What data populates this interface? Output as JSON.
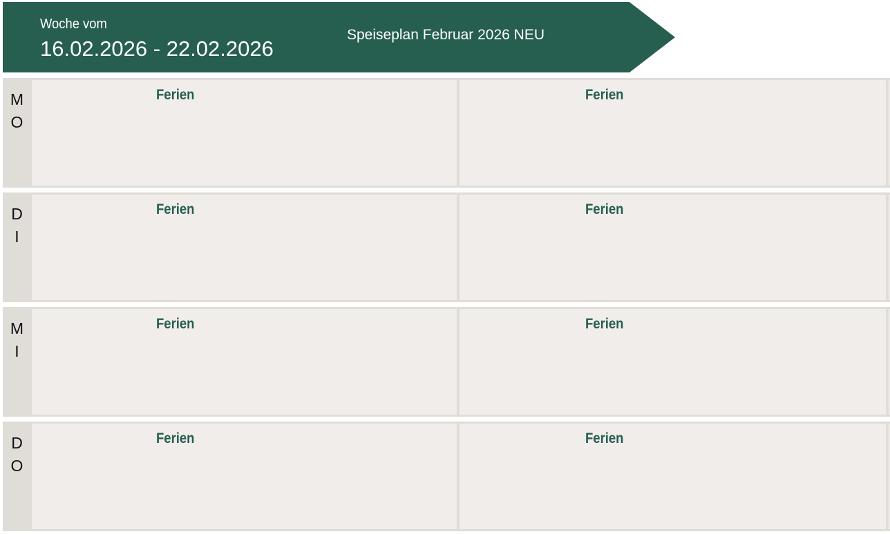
{
  "header": {
    "week_label": "Woche vom",
    "week_range": "16.02.2026 - 22.02.2026",
    "plan_title": "Speiseplan Februar 2026 NEU"
  },
  "days": [
    {
      "abbr_1": "M",
      "abbr_2": "O",
      "col1": "Ferien",
      "col2": "Ferien"
    },
    {
      "abbr_1": "D",
      "abbr_2": "I",
      "col1": "Ferien",
      "col2": "Ferien"
    },
    {
      "abbr_1": "M",
      "abbr_2": "I",
      "col1": "Ferien",
      "col2": "Ferien"
    },
    {
      "abbr_1": "D",
      "abbr_2": "O",
      "col1": "Ferien",
      "col2": "Ferien"
    }
  ],
  "colors": {
    "brand": "#265e4f",
    "cell": "#f0edeb",
    "border": "#e0dcd7"
  }
}
